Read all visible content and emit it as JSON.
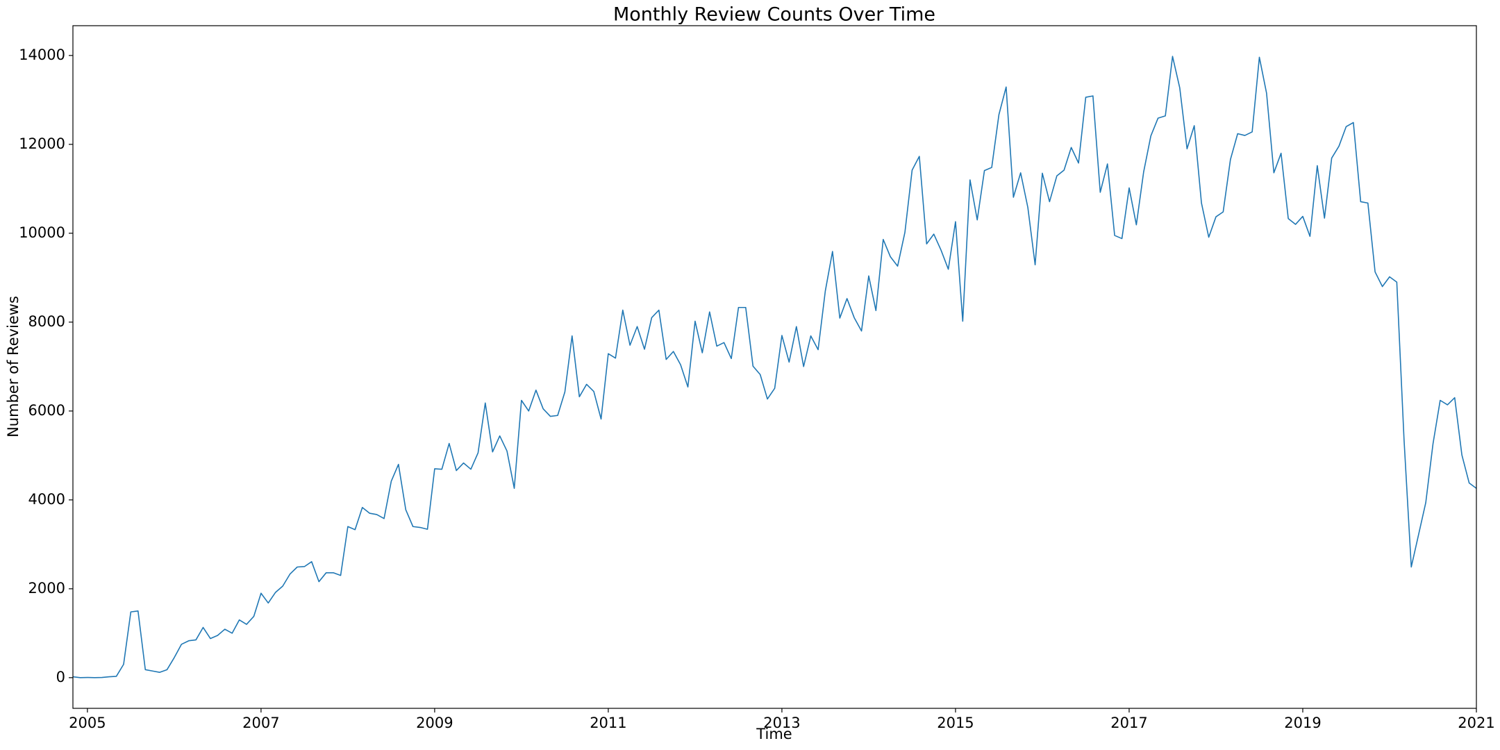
{
  "chart_data": {
    "type": "line",
    "title": "Monthly Review Counts Over Time",
    "x_label": "Time",
    "y_label": "Number of Reviews",
    "color": "#1f77b4",
    "x": [
      2004.833,
      2004.917,
      2005,
      2005.083,
      2005.167,
      2005.25,
      2005.333,
      2005.417,
      2005.5,
      2005.583,
      2005.667,
      2005.75,
      2005.833,
      2005.917,
      2006,
      2006.083,
      2006.167,
      2006.25,
      2006.333,
      2006.417,
      2006.5,
      2006.583,
      2006.667,
      2006.75,
      2006.833,
      2006.917,
      2007,
      2007.083,
      2007.167,
      2007.25,
      2007.333,
      2007.417,
      2007.5,
      2007.583,
      2007.667,
      2007.75,
      2007.833,
      2007.917,
      2008,
      2008.083,
      2008.167,
      2008.25,
      2008.333,
      2008.417,
      2008.5,
      2008.583,
      2008.667,
      2008.75,
      2008.833,
      2008.917,
      2009,
      2009.083,
      2009.167,
      2009.25,
      2009.333,
      2009.417,
      2009.5,
      2009.583,
      2009.667,
      2009.75,
      2009.833,
      2009.917,
      2010,
      2010.083,
      2010.167,
      2010.25,
      2010.333,
      2010.417,
      2010.5,
      2010.583,
      2010.667,
      2010.75,
      2010.833,
      2010.917,
      2011,
      2011.083,
      2011.167,
      2011.25,
      2011.333,
      2011.417,
      2011.5,
      2011.583,
      2011.667,
      2011.75,
      2011.833,
      2011.917,
      2012,
      2012.083,
      2012.167,
      2012.25,
      2012.333,
      2012.417,
      2012.5,
      2012.583,
      2012.667,
      2012.75,
      2012.833,
      2012.917,
      2013,
      2013.083,
      2013.167,
      2013.25,
      2013.333,
      2013.417,
      2013.5,
      2013.583,
      2013.667,
      2013.75,
      2013.833,
      2013.917,
      2014,
      2014.083,
      2014.167,
      2014.25,
      2014.333,
      2014.417,
      2014.5,
      2014.583,
      2014.667,
      2014.75,
      2014.833,
      2014.917,
      2015,
      2015.083,
      2015.167,
      2015.25,
      2015.333,
      2015.417,
      2015.5,
      2015.583,
      2015.667,
      2015.75,
      2015.833,
      2015.917,
      2016,
      2016.083,
      2016.167,
      2016.25,
      2016.333,
      2016.417,
      2016.5,
      2016.583,
      2016.667,
      2016.75,
      2016.833,
      2016.917,
      2017,
      2017.083,
      2017.167,
      2017.25,
      2017.333,
      2017.417,
      2017.5,
      2017.583,
      2017.667,
      2017.75,
      2017.833,
      2017.917,
      2018,
      2018.083,
      2018.167,
      2018.25,
      2018.333,
      2018.417,
      2018.5,
      2018.583,
      2018.667,
      2018.75,
      2018.833,
      2018.917,
      2019,
      2019.083,
      2019.167,
      2019.25,
      2019.333,
      2019.417,
      2019.5,
      2019.583,
      2019.667,
      2019.75,
      2019.833,
      2019.917,
      2020,
      2020.083,
      2020.167,
      2020.25,
      2020.333,
      2020.417,
      2020.5,
      2020.583,
      2020.667,
      2020.75,
      2020.833,
      2020.917,
      2021
    ],
    "values": [
      20,
      0,
      5,
      0,
      5,
      20,
      30,
      300,
      1480,
      1500,
      180,
      150,
      120,
      180,
      450,
      750,
      830,
      850,
      1130,
      880,
      950,
      1090,
      1000,
      1300,
      1200,
      1380,
      1900,
      1680,
      1920,
      2060,
      2330,
      2490,
      2500,
      2610,
      2160,
      2360,
      2360,
      2300,
      3400,
      3330,
      3830,
      3700,
      3670,
      3580,
      4420,
      4800,
      3780,
      3400,
      3380,
      3340,
      4700,
      4690,
      5270,
      4660,
      4830,
      4690,
      5060,
      6180,
      5080,
      5440,
      5100,
      4260,
      6240,
      6000,
      6470,
      6050,
      5880,
      5900,
      6430,
      7690,
      6320,
      6600,
      6440,
      5820,
      7290,
      7190,
      8270,
      7480,
      7900,
      7390,
      8100,
      8270,
      7160,
      7340,
      7040,
      6540,
      8020,
      7310,
      8230,
      7460,
      7540,
      7180,
      8330,
      8330,
      7010,
      6820,
      6270,
      6510,
      7700,
      7100,
      7900,
      7000,
      7690,
      7380,
      8700,
      9590,
      8090,
      8530,
      8100,
      7800,
      9040,
      8260,
      9860,
      9470,
      9260,
      10020,
      11420,
      11730,
      9760,
      9980,
      9620,
      9190,
      10260,
      8020,
      11200,
      10300,
      11410,
      11480,
      12670,
      13290,
      10810,
      11360,
      10580,
      9290,
      11350,
      10710,
      11290,
      11420,
      11930,
      11580,
      13060,
      13090,
      10920,
      11560,
      9950,
      9880,
      11020,
      10190,
      11380,
      12190,
      12590,
      12640,
      13980,
      13270,
      11900,
      12420,
      10680,
      9910,
      10370,
      10480,
      11660,
      12240,
      12200,
      12280,
      13960,
      13150,
      11360,
      11800,
      10330,
      10200,
      10380,
      9930,
      11520,
      10340,
      11690,
      11960,
      12400,
      12490,
      10710,
      10680,
      9130,
      8800,
      9020,
      8900,
      5340,
      2490,
      3210,
      3940,
      5260,
      6240,
      6140,
      6300,
      5010,
      4380,
      4260
    ],
    "xlim": [
      2004.833,
      2021
    ],
    "xticks": [
      2005,
      2007,
      2009,
      2011,
      2013,
      2015,
      2017,
      2019,
      2021
    ],
    "ylim": [
      -690,
      14670
    ],
    "yticks": [
      0,
      2000,
      4000,
      6000,
      8000,
      10000,
      12000,
      14000
    ]
  }
}
